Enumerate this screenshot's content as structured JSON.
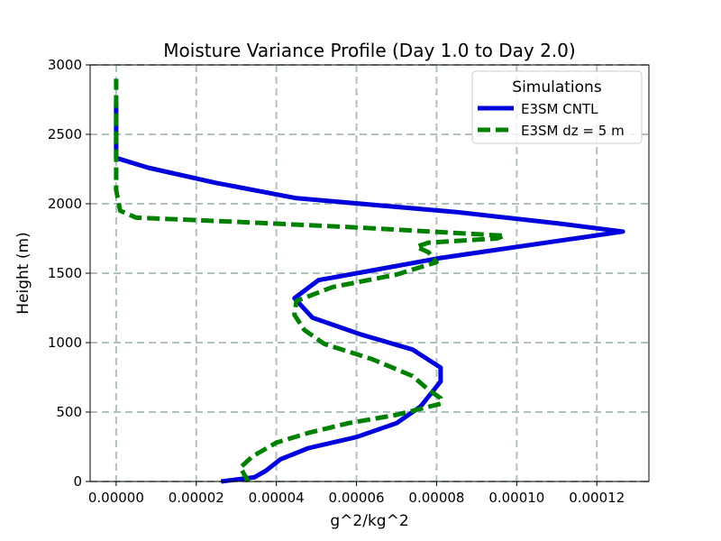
{
  "chart_data": {
    "type": "line",
    "title": "Moisture Variance Profile (Day 1.0 to Day 2.0)",
    "xlabel": "g^2/kg^2",
    "ylabel": "Height (m)",
    "xlim": [
      -6.5e-06,
      0.000133
    ],
    "ylim": [
      0,
      3000
    ],
    "xticks": [
      0,
      2e-05,
      4e-05,
      6e-05,
      8e-05,
      0.0001,
      0.00012
    ],
    "xtick_labels": [
      "0.00000",
      "0.00002",
      "0.00004",
      "0.00006",
      "0.00008",
      "0.00010",
      "0.00012"
    ],
    "yticks": [
      0,
      500,
      1000,
      1500,
      2000,
      2500,
      3000
    ],
    "ytick_labels": [
      "0",
      "500",
      "1000",
      "1500",
      "2000",
      "2500",
      "3000"
    ],
    "grid": true,
    "legend": {
      "title": "Simulations",
      "position": "top-right",
      "entries": [
        "E3SM CNTL",
        "E3SM dz = 5 m"
      ]
    },
    "series": [
      {
        "name": "E3SM CNTL",
        "color": "#0000dd",
        "style": "solid",
        "points": [
          [
            2.62e-05,
            0
          ],
          [
            3.45e-05,
            30
          ],
          [
            3.75e-05,
            80
          ],
          [
            4.1e-05,
            160
          ],
          [
            4.8e-05,
            240
          ],
          [
            6e-05,
            320
          ],
          [
            7e-05,
            420
          ],
          [
            7.6e-05,
            540
          ],
          [
            8.1e-05,
            720
          ],
          [
            8.1e-05,
            820
          ],
          [
            7.4e-05,
            950
          ],
          [
            6.1e-05,
            1060
          ],
          [
            4.9e-05,
            1180
          ],
          [
            4.45e-05,
            1320
          ],
          [
            5.05e-05,
            1450
          ],
          [
            6.2e-05,
            1510
          ],
          [
            8.1e-05,
            1610
          ],
          [
            0.0001265,
            1800
          ],
          [
            0.00011,
            1860
          ],
          [
            8.5e-05,
            1940
          ],
          [
            4.5e-05,
            2040
          ],
          [
            2.5e-05,
            2150
          ],
          [
            8e-06,
            2260
          ],
          [
            0.0,
            2330
          ],
          [
            0.0,
            2500
          ],
          [
            0.0,
            2720
          ]
        ]
      },
      {
        "name": "E3SM dz = 5 m",
        "color": "#008000",
        "style": "dashed",
        "points": [
          [
            3.3e-05,
            0
          ],
          [
            3.2e-05,
            50
          ],
          [
            3.1e-05,
            100
          ],
          [
            3.4e-05,
            180
          ],
          [
            4e-05,
            280
          ],
          [
            4.8e-05,
            350
          ],
          [
            5.8e-05,
            420
          ],
          [
            7e-05,
            480
          ],
          [
            8.1e-05,
            560
          ],
          [
            8.1e-05,
            600
          ],
          [
            7.8e-05,
            660
          ],
          [
            7.4e-05,
            760
          ],
          [
            6.4e-05,
            880
          ],
          [
            5.2e-05,
            990
          ],
          [
            4.7e-05,
            1090
          ],
          [
            4.45e-05,
            1200
          ],
          [
            4.5e-05,
            1300
          ],
          [
            5.4e-05,
            1400
          ],
          [
            7e-05,
            1490
          ],
          [
            8e-05,
            1580
          ],
          [
            7.8e-05,
            1650
          ],
          [
            7.5e-05,
            1690
          ],
          [
            7.8e-05,
            1720
          ],
          [
            9.5e-05,
            1750
          ],
          [
            9.7e-05,
            1770
          ],
          [
            6e-05,
            1830
          ],
          [
            3e-05,
            1870
          ],
          [
            5e-06,
            1900
          ],
          [
            1e-06,
            1950
          ],
          [
            0.0,
            2100
          ],
          [
            0.0,
            2500
          ],
          [
            0.0,
            2900
          ]
        ]
      }
    ]
  }
}
